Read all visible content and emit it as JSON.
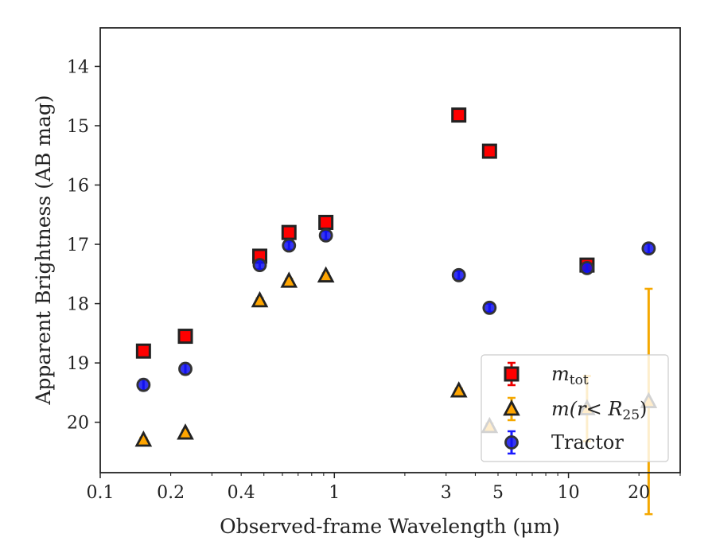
{
  "chart_data": {
    "type": "scatter",
    "title": "",
    "xlabel": "Observed-frame Wavelength (μm)",
    "ylabel": "Apparent Brightness (AB mag)",
    "xscale": "log",
    "xlim": [
      0.1,
      30
    ],
    "ylim": [
      20.85,
      13.35
    ],
    "y_inverted": true,
    "grid": false,
    "legend_position": "lower right",
    "xticks": [
      {
        "value": 0.1,
        "label": "0.1"
      },
      {
        "value": 0.2,
        "label": "0.2"
      },
      {
        "value": 0.4,
        "label": "0.4"
      },
      {
        "value": 1,
        "label": "1"
      },
      {
        "value": 3,
        "label": "3"
      },
      {
        "value": 5,
        "label": "5"
      },
      {
        "value": 10,
        "label": "10"
      },
      {
        "value": 20,
        "label": "20"
      }
    ],
    "yticks": [
      {
        "value": 14,
        "label": "14"
      },
      {
        "value": 15,
        "label": "15"
      },
      {
        "value": 16,
        "label": "16"
      },
      {
        "value": 17,
        "label": "17"
      },
      {
        "value": 18,
        "label": "18"
      },
      {
        "value": 19,
        "label": "19"
      },
      {
        "value": 20,
        "label": "20"
      }
    ],
    "series": [
      {
        "name": "m_tot",
        "legend": {
          "base": "m",
          "sub": "tot"
        },
        "marker": "square",
        "color": "#ff0000",
        "edgecolor": "#222222",
        "errcolor": "#ee0000",
        "points": [
          {
            "x": 0.153,
            "y": 18.8,
            "err": 0.04
          },
          {
            "x": 0.231,
            "y": 18.55,
            "err": 0.04
          },
          {
            "x": 0.48,
            "y": 17.2,
            "err": 0.05
          },
          {
            "x": 0.64,
            "y": 16.8,
            "err": 0.05
          },
          {
            "x": 0.92,
            "y": 16.63,
            "err": 0.05
          },
          {
            "x": 3.4,
            "y": 14.82,
            "err": 0.03
          },
          {
            "x": 4.6,
            "y": 15.43,
            "err": 0.03
          },
          {
            "x": 12.0,
            "y": 17.35,
            "err": 0.05
          }
        ]
      },
      {
        "name": "m(r<R25)",
        "legend": {
          "text": "m(r< R",
          "sub": "25",
          "close": ")"
        },
        "marker": "triangle",
        "color": "#ffa500",
        "edgecolor": "#222222",
        "errcolor": "#f5a800",
        "points": [
          {
            "x": 0.153,
            "y": 20.3,
            "err": 0.04
          },
          {
            "x": 0.231,
            "y": 20.18,
            "err": 0.04
          },
          {
            "x": 0.48,
            "y": 17.95,
            "err": 0.04
          },
          {
            "x": 0.64,
            "y": 17.62,
            "err": 0.04
          },
          {
            "x": 0.92,
            "y": 17.53,
            "err": 0.04
          },
          {
            "x": 3.4,
            "y": 19.47,
            "err": 0.04
          },
          {
            "x": 4.6,
            "y": 20.07,
            "err": 0.05
          },
          {
            "x": 12.0,
            "y": 19.77,
            "err": 0.55
          },
          {
            "x": 22.0,
            "y": 19.65,
            "err": 1.9
          }
        ]
      },
      {
        "name": "Tractor",
        "legend": {
          "text": "Tractor"
        },
        "marker": "circle",
        "color": "#1010ee",
        "edgecolor": "#333333",
        "errcolor": "#1a1aff",
        "points": [
          {
            "x": 0.153,
            "y": 19.37,
            "err": 0.09
          },
          {
            "x": 0.231,
            "y": 19.1,
            "err": 0.09
          },
          {
            "x": 0.48,
            "y": 17.35,
            "err": 0.07
          },
          {
            "x": 0.64,
            "y": 17.02,
            "err": 0.07
          },
          {
            "x": 0.92,
            "y": 16.85,
            "err": 0.07
          },
          {
            "x": 3.4,
            "y": 17.52,
            "err": 0.07
          },
          {
            "x": 4.6,
            "y": 18.07,
            "err": 0.07
          },
          {
            "x": 12.0,
            "y": 17.4,
            "err": 0.07
          },
          {
            "x": 22.0,
            "y": 17.07,
            "err": 0.08
          }
        ]
      }
    ]
  }
}
